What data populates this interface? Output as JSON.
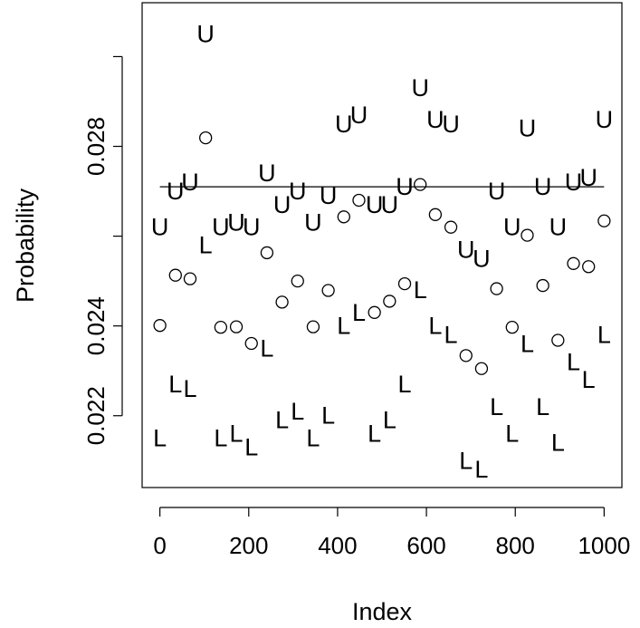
{
  "chart_data": {
    "type": "scatter",
    "title": "",
    "xlabel": "Index",
    "ylabel": "Probability",
    "xlim": [
      -40,
      1040
    ],
    "ylim": [
      0.0204,
      0.0312
    ],
    "grid": false,
    "x_ticks": [
      0,
      200,
      400,
      600,
      800,
      1000
    ],
    "x_tick_labels": [
      "0",
      "200",
      "400",
      "600",
      "800",
      "1000"
    ],
    "y_ticks": [
      0.022,
      0.024,
      0.026,
      0.028,
      0.03
    ],
    "y_tick_labels": [
      "0.022",
      "0.024",
      "",
      "0.028",
      ""
    ],
    "reference_line": {
      "y": 0.0271,
      "x": [
        0,
        1000
      ]
    },
    "points": {
      "x": [
        0,
        35,
        68,
        103,
        137,
        172,
        206,
        241,
        275,
        310,
        345,
        379,
        414,
        448,
        483,
        517,
        551,
        586,
        620,
        655,
        689,
        724,
        758,
        793,
        827,
        862,
        896,
        931,
        965,
        1000
      ],
      "y": [
        0.02401,
        0.02513,
        0.02505,
        0.02819,
        0.02397,
        0.02398,
        0.02361,
        0.02563,
        0.02453,
        0.025,
        0.02398,
        0.02479,
        0.02643,
        0.0268,
        0.0243,
        0.02455,
        0.02494,
        0.02715,
        0.02648,
        0.0262,
        0.02334,
        0.02305,
        0.02483,
        0.02397,
        0.02602,
        0.0249,
        0.02368,
        0.02539,
        0.02532,
        0.02634
      ]
    },
    "upper": {
      "label": "U",
      "x": [
        0,
        35,
        68,
        103,
        137,
        172,
        206,
        241,
        275,
        310,
        345,
        379,
        414,
        448,
        483,
        517,
        551,
        586,
        620,
        655,
        689,
        724,
        758,
        793,
        827,
        862,
        896,
        931,
        965,
        1000
      ],
      "y": [
        0.0262,
        0.027,
        0.0272,
        0.0305,
        0.0262,
        0.0263,
        0.0262,
        0.0274,
        0.0267,
        0.027,
        0.0263,
        0.0269,
        0.0285,
        0.0287,
        0.0267,
        0.0267,
        0.0271,
        0.0293,
        0.0286,
        0.0285,
        0.0257,
        0.0255,
        0.027,
        0.0262,
        0.0284,
        0.0271,
        0.0262,
        0.0272,
        0.0273,
        0.0286
      ]
    },
    "lower": {
      "label": "L",
      "x": [
        0,
        35,
        68,
        103,
        137,
        172,
        206,
        241,
        275,
        310,
        345,
        379,
        414,
        448,
        483,
        517,
        551,
        586,
        620,
        655,
        689,
        724,
        758,
        793,
        827,
        862,
        896,
        931,
        965,
        1000
      ],
      "y": [
        0.0215,
        0.0227,
        0.0226,
        0.0258,
        0.0215,
        0.0216,
        0.0213,
        0.0235,
        0.0219,
        0.0221,
        0.0215,
        0.022,
        0.024,
        0.0243,
        0.0216,
        0.0219,
        0.0227,
        0.0248,
        0.024,
        0.0238,
        0.021,
        0.0208,
        0.0222,
        0.0216,
        0.0236,
        0.0222,
        0.0214,
        0.0232,
        0.0228,
        0.0238
      ]
    }
  }
}
